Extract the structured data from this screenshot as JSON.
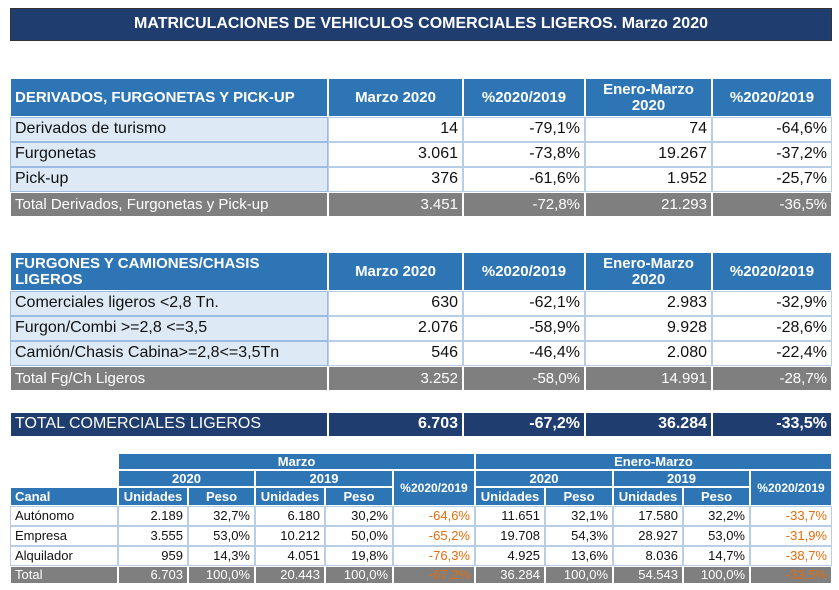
{
  "title": "MATRICULACIONES DE VEHICULOS COMERCIALES LIGEROS. Marzo 2020",
  "table1": {
    "header": [
      "DERIVADOS, FURGONETAS Y PICK-UP",
      "Marzo 2020",
      "%2020/2019",
      "Enero-Marzo 2020",
      "%2020/2019"
    ],
    "rows": [
      [
        "Derivados de turismo",
        "14",
        "-79,1%",
        "74",
        "-64,6%"
      ],
      [
        "Furgonetas",
        "3.061",
        "-73,8%",
        "19.267",
        "-37,2%"
      ],
      [
        "Pick-up",
        "376",
        "-61,6%",
        "1.952",
        "-25,7%"
      ]
    ],
    "total": [
      "Total Derivados, Furgonetas y Pick-up",
      "3.451",
      "-72,8%",
      "21.293",
      "-36,5%"
    ]
  },
  "table2": {
    "header": [
      "FURGONES Y CAMIONES/CHASIS LIGEROS",
      "Marzo 2020",
      "%2020/2019",
      "Enero-Marzo 2020",
      "%2020/2019"
    ],
    "rows": [
      [
        "Comerciales ligeros <2,8 Tn.",
        "630",
        "-62,1%",
        "2.983",
        "-32,9%"
      ],
      [
        "Furgon/Combi >=2,8 <=3,5",
        "2.076",
        "-58,9%",
        "9.928",
        "-28,6%"
      ],
      [
        "Camión/Chasis Cabina>=2,8<=3,5Tn",
        "546",
        "-46,4%",
        "2.080",
        "-22,4%"
      ]
    ],
    "total": [
      "Total Fg/Ch Ligeros",
      "3.252",
      "-58,0%",
      "14.991",
      "-28,7%"
    ]
  },
  "total_row": [
    "TOTAL COMERCIALES LIGEROS",
    "6.703",
    "-67,2%",
    "36.284",
    "-33,5%"
  ],
  "table3": {
    "group_headers": [
      "Marzo",
      "Enero-Marzo"
    ],
    "year_headers": [
      "2020",
      "2019",
      "2020",
      "2019"
    ],
    "pct_headers": [
      "%2020/2019",
      "%2020/2019"
    ],
    "canal_header": "Canal",
    "column_headers": [
      "Unidades",
      "Peso",
      "Unidades",
      "Peso",
      "Unidades",
      "Peso",
      "Unidades",
      "Peso"
    ],
    "rows": [
      [
        "Autónomo",
        "2.189",
        "32,7%",
        "6.180",
        "30,2%",
        "-64,6%",
        "11.651",
        "32,1%",
        "17.580",
        "32,2%",
        "-33,7%"
      ],
      [
        "Empresa",
        "3.555",
        "53,0%",
        "10.212",
        "50,0%",
        "-65,2%",
        "19.708",
        "54,3%",
        "28.927",
        "53,0%",
        "-31,9%"
      ],
      [
        "Alquilador",
        "959",
        "14,3%",
        "4.051",
        "19,8%",
        "-76,3%",
        "4.925",
        "13,6%",
        "8.036",
        "14,7%",
        "-38,7%"
      ]
    ],
    "total": [
      "Total",
      "6.703",
      "100,0%",
      "20.443",
      "100,0%",
      "-67,2%",
      "36.284",
      "100,0%",
      "54.543",
      "100,0%",
      "-33,5%"
    ]
  }
}
